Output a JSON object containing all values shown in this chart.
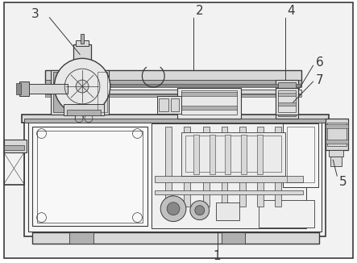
{
  "bg_color": "#ffffff",
  "lc": "#3a3a3a",
  "lc_thin": "#555555",
  "fl": "#f2f2f2",
  "fm": "#d8d8d8",
  "fd": "#b0b0b0",
  "fvd": "#888888",
  "label_fontsize": 11,
  "figsize": [
    4.43,
    3.26
  ],
  "dpi": 100
}
